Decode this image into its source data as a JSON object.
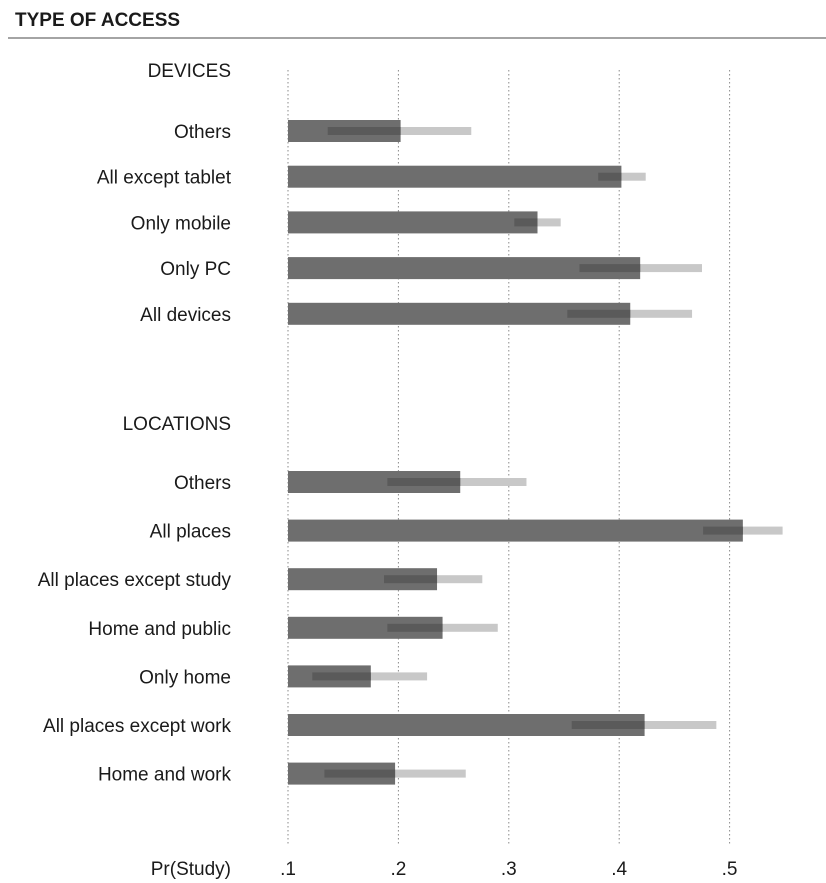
{
  "chart_data": {
    "type": "bar",
    "title": "TYPE OF ACCESS",
    "xlabel": "Pr(Study)",
    "xlim": [
      0.1,
      0.55
    ],
    "x_ticks": [
      ".1",
      ".2",
      ".3",
      ".4",
      ".5"
    ],
    "x_tick_values": [
      0.1,
      0.2,
      0.3,
      0.4,
      0.5
    ],
    "grid": true,
    "groups": [
      {
        "label": "DEVICES",
        "categories": [
          "Others",
          "All except tablet",
          "Only mobile",
          "Only PC",
          "All devices"
        ],
        "values": [
          0.202,
          0.402,
          0.326,
          0.419,
          0.41
        ],
        "ci_low": [
          0.136,
          0.381,
          0.305,
          0.364,
          0.353
        ],
        "ci_high": [
          0.266,
          0.424,
          0.347,
          0.475,
          0.466
        ]
      },
      {
        "label": "LOCATIONS",
        "categories": [
          "Others",
          "All places",
          "All places except study",
          "Home and public",
          "Only home",
          "All places except work",
          "Home and work"
        ],
        "values": [
          0.256,
          0.512,
          0.235,
          0.24,
          0.175,
          0.423,
          0.197
        ],
        "ci_low": [
          0.19,
          0.476,
          0.187,
          0.19,
          0.122,
          0.357,
          0.133
        ],
        "ci_high": [
          0.316,
          0.548,
          0.276,
          0.29,
          0.226,
          0.488,
          0.261
        ]
      }
    ],
    "colors": {
      "bar": "#6e6e6e",
      "ci": "#c8c8c8",
      "ci_overlap": "#5a5a5a"
    }
  }
}
